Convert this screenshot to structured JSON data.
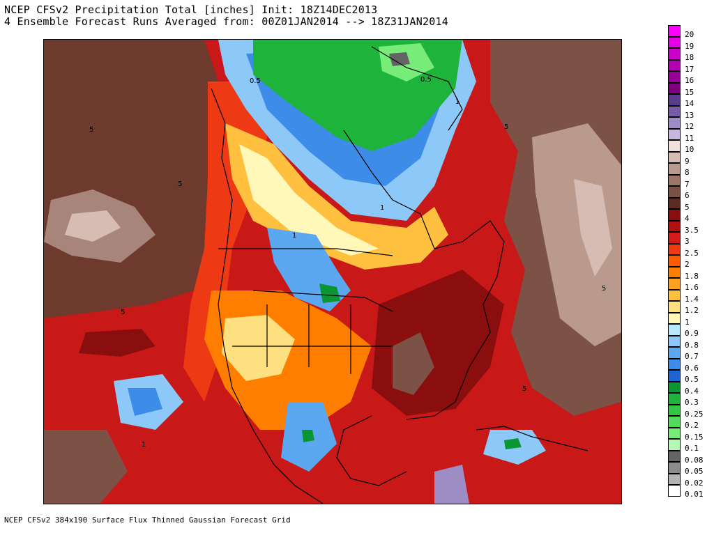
{
  "header": {
    "title_line1": "NCEP CFSv2 Precipitation Total [inches] Init: 18Z14DEC2013",
    "title_line2": "4 Ensemble Forecast Runs Averaged from: 00Z01JAN2014 --> 18Z31JAN2014"
  },
  "footer": {
    "grid_text": "NCEP CFSv2 384x190 Surface Flux Thinned Gaussian Forecast Grid"
  },
  "map": {
    "contour_labels": [
      "0.5",
      "0.5",
      "5",
      "5",
      "5",
      "1",
      "1",
      "1",
      "5",
      "1",
      "5",
      "5"
    ]
  },
  "colorbar": {
    "levels": [
      {
        "label": "20",
        "color": "#ff00ff"
      },
      {
        "label": "19",
        "color": "#e600e6"
      },
      {
        "label": "18",
        "color": "#cc00cc"
      },
      {
        "label": "17",
        "color": "#b300b3"
      },
      {
        "label": "16",
        "color": "#990099"
      },
      {
        "label": "15",
        "color": "#7f007f"
      },
      {
        "label": "14",
        "color": "#5a3c8c"
      },
      {
        "label": "13",
        "color": "#7a5ca8"
      },
      {
        "label": "12",
        "color": "#9e8cc4"
      },
      {
        "label": "11",
        "color": "#c4b8dc"
      },
      {
        "label": "10",
        "color": "#f0e1dc"
      },
      {
        "label": "9",
        "color": "#d7bcb3"
      },
      {
        "label": "8",
        "color": "#b99a8d"
      },
      {
        "label": "7",
        "color": "#9c7669"
      },
      {
        "label": "6",
        "color": "#7d5246"
      },
      {
        "label": "5",
        "color": "#5c2b22"
      },
      {
        "label": "4",
        "color": "#8b0e0e"
      },
      {
        "label": "3.5",
        "color": "#b01010"
      },
      {
        "label": "3",
        "color": "#d41c1c"
      },
      {
        "label": "2.5",
        "color": "#ee3a14"
      },
      {
        "label": "2",
        "color": "#ff5a00"
      },
      {
        "label": "1.8",
        "color": "#ff7e00"
      },
      {
        "label": "1.6",
        "color": "#ffa01e"
      },
      {
        "label": "1.4",
        "color": "#ffc040"
      },
      {
        "label": "1.2",
        "color": "#ffe080"
      },
      {
        "label": "1",
        "color": "#fff8b8"
      },
      {
        "label": "0.9",
        "color": "#b8e8ff"
      },
      {
        "label": "0.8",
        "color": "#8cc8f8"
      },
      {
        "label": "0.7",
        "color": "#5ca8f0"
      },
      {
        "label": "0.6",
        "color": "#3c8ce8"
      },
      {
        "label": "0.5",
        "color": "#1e64d2"
      },
      {
        "label": "0.4",
        "color": "#0a9632"
      },
      {
        "label": "0.3",
        "color": "#1eb43c"
      },
      {
        "label": "0.25",
        "color": "#32c846"
      },
      {
        "label": "0.2",
        "color": "#50dc5a"
      },
      {
        "label": "0.15",
        "color": "#78ec78"
      },
      {
        "label": "0.1",
        "color": "#b4f8b4"
      },
      {
        "label": "0.08",
        "color": "#646464"
      },
      {
        "label": "0.05",
        "color": "#8c8c8c"
      },
      {
        "label": "0.02",
        "color": "#b4b4b4"
      },
      {
        "label": "0.01",
        "color": "#ffffff"
      }
    ]
  }
}
